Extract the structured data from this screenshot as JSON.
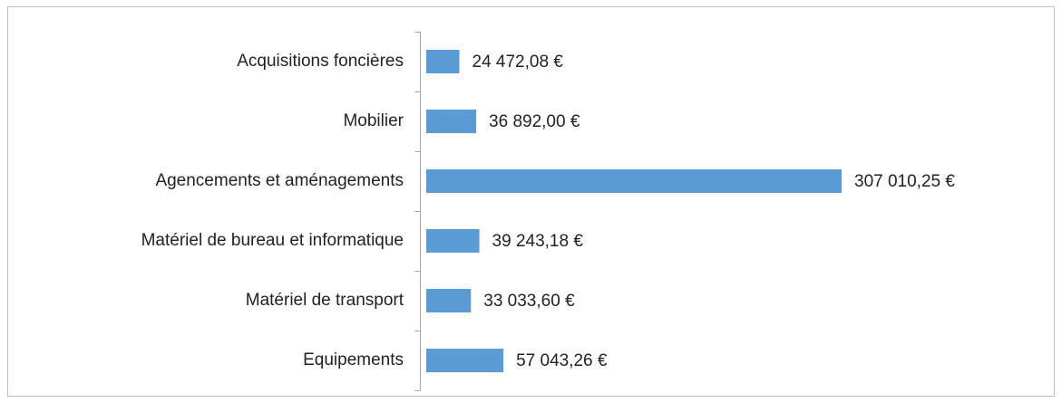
{
  "chart_data": {
    "type": "bar",
    "orientation": "horizontal",
    "categories": [
      "Acquisitions foncières",
      "Mobilier",
      "Agencements et aménagements",
      "Matériel de bureau et informatique",
      "Matériel de transport",
      "Equipements"
    ],
    "values": [
      24472.08,
      36892.0,
      307010.25,
      39243.18,
      33033.6,
      57043.26
    ],
    "value_labels": [
      "24 472,08 €",
      "36 892,00 €",
      "307 010,25 €",
      "39 243,18 €",
      "33 033,60 €",
      "57 043,26 €"
    ],
    "color": "#5b9bd5"
  }
}
